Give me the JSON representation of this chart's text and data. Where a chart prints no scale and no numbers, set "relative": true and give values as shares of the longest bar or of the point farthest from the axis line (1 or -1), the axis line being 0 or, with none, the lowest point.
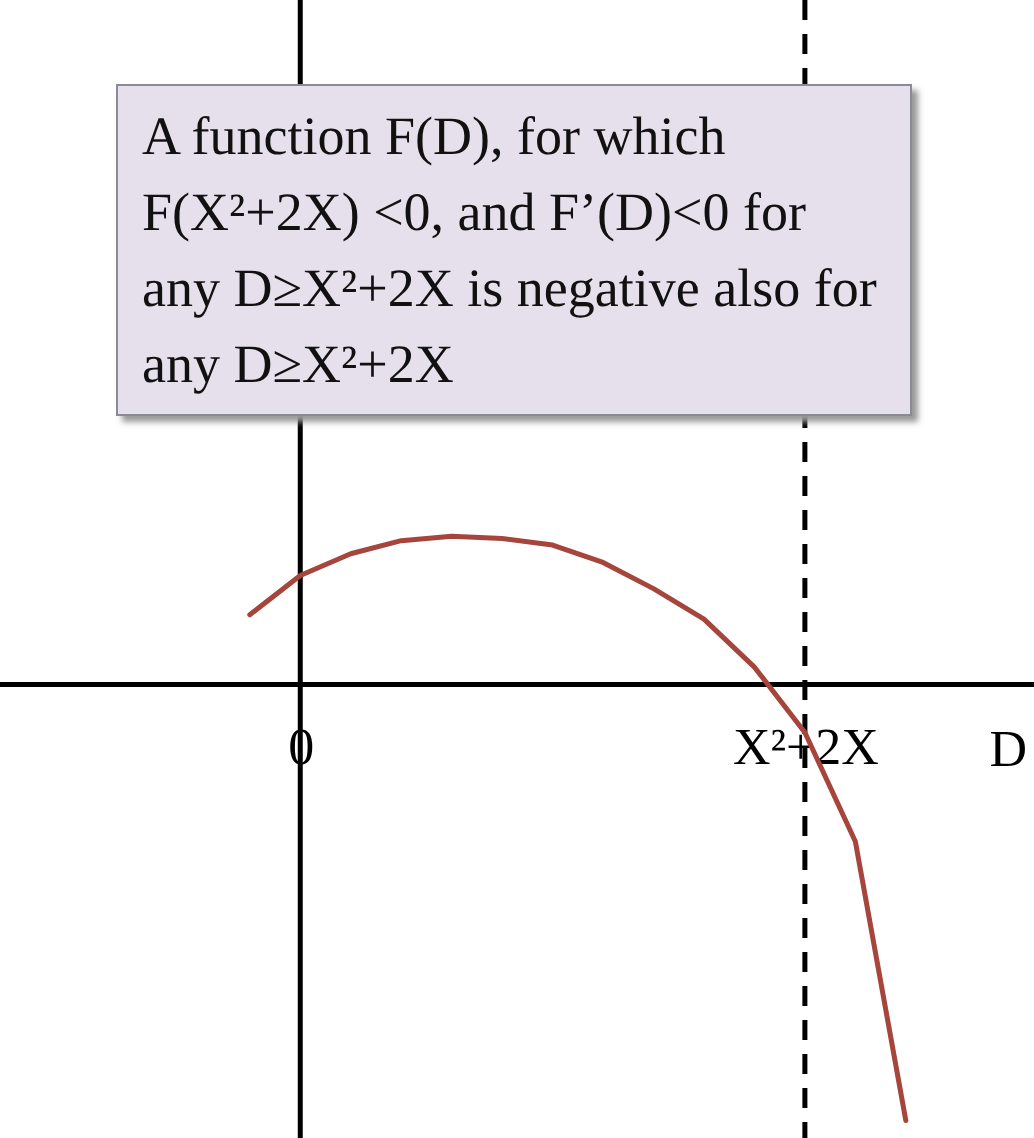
{
  "chart_data": {
    "type": "line",
    "relative": true,
    "xlabel": "D",
    "categories": [
      null,
      "0",
      null,
      null,
      null,
      null,
      null,
      null,
      null,
      null,
      null,
      "X²+2X",
      null,
      null
    ],
    "series": [
      {
        "color": "#a5453b",
        "values": [
          0.16,
          0.25,
          0.3,
          0.33,
          0.34,
          0.335,
          0.32,
          0.28,
          0.22,
          0.15,
          0.04,
          -0.11,
          -0.36,
          -1
        ]
      }
    ],
    "ref_lines": [
      {
        "axis": "x",
        "value": "X²+2X",
        "line_style": "dashed"
      }
    ],
    "annotations": [
      "A function F(D), for which F(X²+2X) <0, and F’(D)<0 for any D≥X²+2X is negative also for any D≥X²+2X"
    ],
    "grid": false,
    "marker": "none",
    "line_style": "solid"
  }
}
